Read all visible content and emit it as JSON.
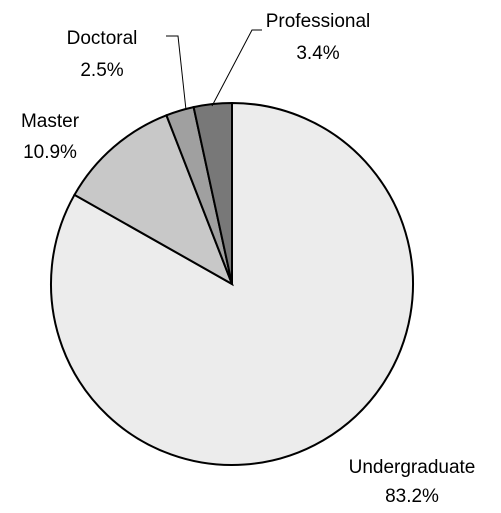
{
  "chart_data": {
    "type": "pie",
    "categories": [
      "Undergraduate",
      "Master",
      "Doctoral",
      "Professional"
    ],
    "values": [
      83.2,
      10.9,
      2.5,
      3.4
    ],
    "value_labels": [
      "83.2%",
      "10.9%",
      "2.5%",
      "3.4%"
    ],
    "colors": [
      "#ececec",
      "#c8c8c8",
      "#a0a0a0",
      "#787878"
    ]
  }
}
